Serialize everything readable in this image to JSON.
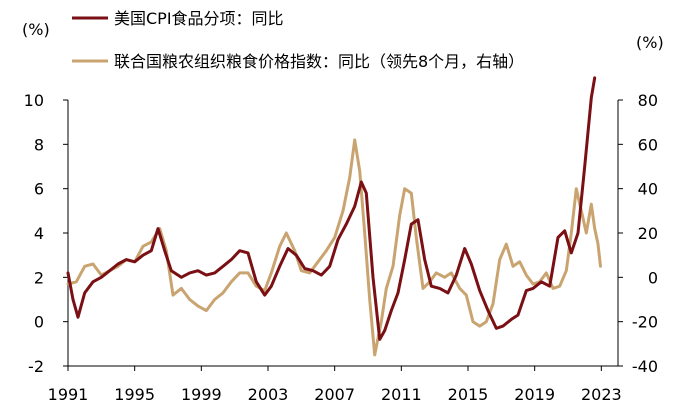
{
  "chart_data": {
    "type": "line",
    "title": "",
    "left_axis": {
      "unit": "(%)",
      "ylim": [
        -2,
        10
      ],
      "ticks": [
        -2,
        0,
        2,
        4,
        6,
        8,
        10
      ]
    },
    "right_axis": {
      "unit": "(%)",
      "ylim": [
        -40,
        80
      ],
      "ticks": [
        -40,
        -20,
        0,
        20,
        40,
        60,
        80
      ]
    },
    "x_axis": {
      "xlim": [
        1991,
        2024
      ],
      "ticks": [
        1991,
        1995,
        1999,
        2003,
        2007,
        2011,
        2015,
        2019,
        2023
      ]
    },
    "legend_position": "top-left",
    "grid": false,
    "series": [
      {
        "name": "美国CPI食品分项：同比",
        "axis": "left",
        "color": "#7a0f14",
        "points": [
          [
            1991.0,
            2.2
          ],
          [
            1991.3,
            1.0
          ],
          [
            1991.6,
            0.2
          ],
          [
            1992.0,
            1.3
          ],
          [
            1992.5,
            1.8
          ],
          [
            1993.0,
            2.0
          ],
          [
            1993.5,
            2.3
          ],
          [
            1994.0,
            2.6
          ],
          [
            1994.5,
            2.8
          ],
          [
            1995.0,
            2.7
          ],
          [
            1995.5,
            3.0
          ],
          [
            1996.0,
            3.2
          ],
          [
            1996.4,
            4.2
          ],
          [
            1996.8,
            3.2
          ],
          [
            1997.2,
            2.3
          ],
          [
            1997.8,
            2.0
          ],
          [
            1998.3,
            2.2
          ],
          [
            1998.8,
            2.3
          ],
          [
            1999.3,
            2.1
          ],
          [
            1999.8,
            2.2
          ],
          [
            2000.3,
            2.5
          ],
          [
            2000.8,
            2.8
          ],
          [
            2001.3,
            3.2
          ],
          [
            2001.8,
            3.1
          ],
          [
            2002.3,
            1.8
          ],
          [
            2002.8,
            1.2
          ],
          [
            2003.2,
            1.6
          ],
          [
            2003.7,
            2.5
          ],
          [
            2004.2,
            3.3
          ],
          [
            2004.7,
            3.0
          ],
          [
            2005.2,
            2.4
          ],
          [
            2005.7,
            2.3
          ],
          [
            2006.2,
            2.1
          ],
          [
            2006.7,
            2.5
          ],
          [
            2007.2,
            3.7
          ],
          [
            2007.7,
            4.4
          ],
          [
            2008.2,
            5.2
          ],
          [
            2008.6,
            6.3
          ],
          [
            2008.9,
            5.8
          ],
          [
            2009.3,
            2.0
          ],
          [
            2009.7,
            -0.8
          ],
          [
            2010.0,
            -0.4
          ],
          [
            2010.4,
            0.5
          ],
          [
            2010.8,
            1.3
          ],
          [
            2011.2,
            2.8
          ],
          [
            2011.6,
            4.4
          ],
          [
            2012.0,
            4.6
          ],
          [
            2012.4,
            2.8
          ],
          [
            2012.8,
            1.6
          ],
          [
            2013.3,
            1.5
          ],
          [
            2013.8,
            1.3
          ],
          [
            2014.3,
            2.1
          ],
          [
            2014.8,
            3.3
          ],
          [
            2015.2,
            2.6
          ],
          [
            2015.7,
            1.4
          ],
          [
            2016.2,
            0.5
          ],
          [
            2016.7,
            -0.3
          ],
          [
            2017.1,
            -0.2
          ],
          [
            2017.6,
            0.1
          ],
          [
            2018.0,
            0.3
          ],
          [
            2018.5,
            1.4
          ],
          [
            2018.9,
            1.5
          ],
          [
            2019.4,
            1.8
          ],
          [
            2019.9,
            1.6
          ],
          [
            2020.4,
            3.8
          ],
          [
            2020.8,
            4.1
          ],
          [
            2021.2,
            3.1
          ],
          [
            2021.6,
            4.0
          ],
          [
            2022.0,
            7.0
          ],
          [
            2022.4,
            10.1
          ],
          [
            2022.6,
            11.0
          ]
        ]
      },
      {
        "name": "联合国粮农组织粮食价格指数：同比（领先8个月，右轴）",
        "axis": "right",
        "color": "#c9a470",
        "points": [
          [
            1991.0,
            -3.0
          ],
          [
            1991.5,
            -2.0
          ],
          [
            1992.0,
            5.0
          ],
          [
            1992.5,
            6.0
          ],
          [
            1993.0,
            1.0
          ],
          [
            1993.5,
            3.0
          ],
          [
            1994.0,
            5.0
          ],
          [
            1994.5,
            8.0
          ],
          [
            1995.0,
            7.0
          ],
          [
            1995.5,
            14.0
          ],
          [
            1996.0,
            16.0
          ],
          [
            1996.5,
            22.0
          ],
          [
            1996.9,
            12.0
          ],
          [
            1997.3,
            -8.0
          ],
          [
            1997.8,
            -5.0
          ],
          [
            1998.3,
            -10.0
          ],
          [
            1998.8,
            -13.0
          ],
          [
            1999.3,
            -15.0
          ],
          [
            1999.8,
            -10.0
          ],
          [
            2000.3,
            -7.0
          ],
          [
            2000.8,
            -2.0
          ],
          [
            2001.3,
            2.0
          ],
          [
            2001.8,
            2.0
          ],
          [
            2002.3,
            -4.0
          ],
          [
            2002.8,
            -6.0
          ],
          [
            2003.2,
            2.0
          ],
          [
            2003.7,
            14.0
          ],
          [
            2004.1,
            20.0
          ],
          [
            2004.6,
            12.0
          ],
          [
            2005.0,
            3.0
          ],
          [
            2005.5,
            2.0
          ],
          [
            2006.0,
            7.0
          ],
          [
            2006.5,
            12.0
          ],
          [
            2007.0,
            18.0
          ],
          [
            2007.5,
            30.0
          ],
          [
            2007.9,
            45.0
          ],
          [
            2008.2,
            62.0
          ],
          [
            2008.5,
            48.0
          ],
          [
            2008.8,
            20.0
          ],
          [
            2009.1,
            -10.0
          ],
          [
            2009.4,
            -35.0
          ],
          [
            2009.8,
            -20.0
          ],
          [
            2010.1,
            -5.0
          ],
          [
            2010.5,
            5.0
          ],
          [
            2010.9,
            28.0
          ],
          [
            2011.2,
            40.0
          ],
          [
            2011.6,
            38.0
          ],
          [
            2011.9,
            18.0
          ],
          [
            2012.3,
            -5.0
          ],
          [
            2012.7,
            -2.0
          ],
          [
            2013.1,
            2.0
          ],
          [
            2013.6,
            0.0
          ],
          [
            2014.0,
            2.0
          ],
          [
            2014.5,
            -5.0
          ],
          [
            2014.9,
            -8.0
          ],
          [
            2015.3,
            -20.0
          ],
          [
            2015.7,
            -22.0
          ],
          [
            2016.1,
            -20.0
          ],
          [
            2016.5,
            -12.0
          ],
          [
            2016.9,
            8.0
          ],
          [
            2017.3,
            15.0
          ],
          [
            2017.7,
            5.0
          ],
          [
            2018.1,
            7.0
          ],
          [
            2018.5,
            1.0
          ],
          [
            2018.9,
            -3.0
          ],
          [
            2019.3,
            -2.0
          ],
          [
            2019.7,
            2.0
          ],
          [
            2020.1,
            -5.0
          ],
          [
            2020.5,
            -4.0
          ],
          [
            2020.9,
            3.0
          ],
          [
            2021.2,
            20.0
          ],
          [
            2021.5,
            40.0
          ],
          [
            2021.8,
            30.0
          ],
          [
            2022.1,
            20.0
          ],
          [
            2022.4,
            33.0
          ],
          [
            2022.6,
            22.0
          ],
          [
            2022.8,
            15.0
          ],
          [
            2022.95,
            5.0
          ]
        ]
      }
    ]
  }
}
